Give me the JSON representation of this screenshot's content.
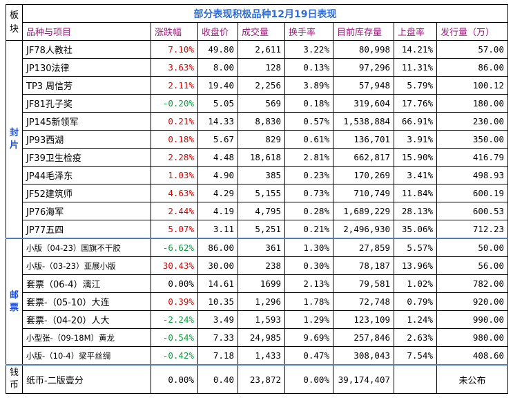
{
  "title": "部分表现积极品种12月19日表现",
  "corner_label": "板块",
  "headers": [
    "品种与项目",
    "涨跌幅",
    "收盘价",
    "成交量",
    "换手率",
    "目前库存量",
    "上盘率",
    "发行量（万）"
  ],
  "groups": [
    {
      "label": "封片",
      "rows": [
        {
          "name": "JF78人教社",
          "chg": "7.10%",
          "dir": "up",
          "close": "49.80",
          "vol": "2,611",
          "turn": "3.22%",
          "stock": "80,998",
          "rate": "14.21%",
          "issue": "57.00"
        },
        {
          "name": "JP130法律",
          "chg": "3.63%",
          "dir": "up",
          "close": "8.00",
          "vol": "128",
          "turn": "0.13%",
          "stock": "97,296",
          "rate": "11.31%",
          "issue": "86.00"
        },
        {
          "name": "TP3 周信芳",
          "chg": "2.11%",
          "dir": "up",
          "close": "19.40",
          "vol": "2,256",
          "turn": "3.89%",
          "stock": "57,948",
          "rate": "5.79%",
          "issue": "100.12"
        },
        {
          "name": "JF81孔子奖",
          "chg": "-0.20%",
          "dir": "down",
          "close": "5.05",
          "vol": "569",
          "turn": "0.18%",
          "stock": "319,604",
          "rate": "17.76%",
          "issue": "180.00"
        },
        {
          "name": "JP145新领军",
          "chg": "0.21%",
          "dir": "up",
          "close": "14.33",
          "vol": "8,830",
          "turn": "0.57%",
          "stock": "1,538,884",
          "rate": "66.91%",
          "issue": "230.00"
        },
        {
          "name": "JP93西湖",
          "chg": "0.18%",
          "dir": "up",
          "close": "5.67",
          "vol": "829",
          "turn": "0.61%",
          "stock": "136,701",
          "rate": "3.91%",
          "issue": "350.00"
        },
        {
          "name": "JF39卫生检疫",
          "chg": "2.28%",
          "dir": "up",
          "close": "4.48",
          "vol": "18,618",
          "turn": "2.81%",
          "stock": "662,817",
          "rate": "15.90%",
          "issue": "416.79"
        },
        {
          "name": "JP44毛泽东",
          "chg": "1.03%",
          "dir": "up",
          "close": "4.90",
          "vol": "385",
          "turn": "0.23%",
          "stock": "170,269",
          "rate": "3.41%",
          "issue": "498.93"
        },
        {
          "name": "JF52建筑师",
          "chg": "4.63%",
          "dir": "up",
          "close": "4.29",
          "vol": "5,155",
          "turn": "0.73%",
          "stock": "710,749",
          "rate": "11.84%",
          "issue": "600.19"
        },
        {
          "name": "JP76海军",
          "chg": "2.44%",
          "dir": "up",
          "close": "4.19",
          "vol": "4,795",
          "turn": "0.28%",
          "stock": "1,689,229",
          "rate": "28.13%",
          "issue": "600.53"
        },
        {
          "name": "JP77五四",
          "chg": "5.07%",
          "dir": "up",
          "close": "3.11",
          "vol": "5,251",
          "turn": "0.21%",
          "stock": "2,496,930",
          "rate": "35.06%",
          "issue": "712.23"
        }
      ]
    },
    {
      "label": "邮票",
      "rows": [
        {
          "name": "小版（04-23）国旗不干胶",
          "chg": "-6.62%",
          "dir": "down",
          "close": "86.00",
          "vol": "361",
          "turn": "1.30%",
          "stock": "27,859",
          "rate": "5.57%",
          "issue": "50.00",
          "small": true
        },
        {
          "name": "小版-（03-23）亚展小版",
          "chg": "30.43%",
          "dir": "up",
          "close": "30.00",
          "vol": "238",
          "turn": "0.30%",
          "stock": "78,187",
          "rate": "13.96%",
          "issue": "56.00",
          "small": true
        },
        {
          "name": "套票（06-4）漓江",
          "chg": "0.00%",
          "dir": "flat",
          "close": "14.61",
          "vol": "1699",
          "turn": "2.13%",
          "stock": "79,581",
          "rate": "1.02%",
          "issue": "782.00"
        },
        {
          "name": "套票-（05-10）大连",
          "chg": "0.39%",
          "dir": "up",
          "close": "10.35",
          "vol": "1,296",
          "turn": "1.78%",
          "stock": "72,748",
          "rate": "0.79%",
          "issue": "920.00"
        },
        {
          "name": "套票-（04-20）人大",
          "chg": "-2.24%",
          "dir": "down",
          "close": "3.49",
          "vol": "1,593",
          "turn": "1.29%",
          "stock": "123,109",
          "rate": "1.24%",
          "issue": "990.00"
        },
        {
          "name": "小型张-（09-18M）黄龙",
          "chg": "-0.54%",
          "dir": "down",
          "close": "7.33",
          "vol": "24,985",
          "turn": "9.69%",
          "stock": "257,846",
          "rate": "2.63%",
          "issue": "980.00",
          "small": true
        },
        {
          "name": "小版-（10-4）梁平丝绸",
          "chg": "-0.42%",
          "dir": "down",
          "close": "7.18",
          "vol": "1,433",
          "turn": "0.47%",
          "stock": "308,043",
          "rate": "7.54%",
          "issue": "408.60",
          "small": true
        }
      ]
    },
    {
      "label": "钱币",
      "rows": [
        {
          "name": "纸币-二版壹分",
          "chg": "0.00%",
          "dir": "flat",
          "close": "0.40",
          "vol": "23,872",
          "turn": "0.00%",
          "stock": "39,174,407",
          "rate": "",
          "issue": "未公布",
          "tall": true
        }
      ]
    }
  ],
  "colors": {
    "title": "#2c6bd8",
    "header": "#9b1b7a",
    "up": "#e00000",
    "down": "#0a9c3c",
    "category": "#1f4fd8"
  }
}
